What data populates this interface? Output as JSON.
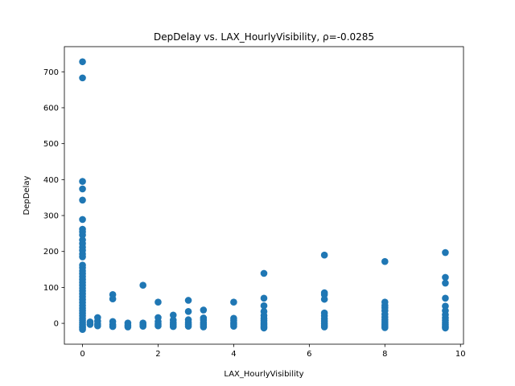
{
  "chart_data": {
    "type": "scatter",
    "title": "DepDelay vs. LAX_HourlyVisibility, ρ=-0.0285",
    "xlabel": "LAX_HourlyVisibility",
    "ylabel": "DepDelay",
    "xlim": [
      -0.48,
      10.08
    ],
    "ylim": [
      -58,
      770
    ],
    "xticks": [
      0,
      2,
      4,
      6,
      8,
      10
    ],
    "yticks": [
      0,
      100,
      200,
      300,
      400,
      500,
      600,
      700
    ],
    "grid": false,
    "legend": "none",
    "color": "#1f77b4",
    "points": [
      [
        0,
        728
      ],
      [
        0,
        683
      ],
      [
        0,
        395
      ],
      [
        0,
        374
      ],
      [
        0,
        343
      ],
      [
        0,
        289
      ],
      [
        0,
        262
      ],
      [
        0,
        255
      ],
      [
        0,
        246
      ],
      [
        0,
        232
      ],
      [
        0,
        222
      ],
      [
        0,
        212
      ],
      [
        0,
        203
      ],
      [
        0,
        193
      ],
      [
        0,
        185
      ],
      [
        0,
        162
      ],
      [
        0,
        155
      ],
      [
        0,
        146
      ],
      [
        0,
        138
      ],
      [
        0,
        130
      ],
      [
        0,
        122
      ],
      [
        0,
        114
      ],
      [
        0,
        106
      ],
      [
        0,
        98
      ],
      [
        0,
        90
      ],
      [
        0,
        82
      ],
      [
        0,
        74
      ],
      [
        0,
        66
      ],
      [
        0,
        58
      ],
      [
        0,
        50
      ],
      [
        0,
        42
      ],
      [
        0,
        35
      ],
      [
        0,
        28
      ],
      [
        0,
        21
      ],
      [
        0,
        14
      ],
      [
        0,
        8
      ],
      [
        0,
        2
      ],
      [
        0,
        -4
      ],
      [
        0,
        -9
      ],
      [
        0,
        -13
      ],
      [
        0,
        -17
      ],
      [
        0.2,
        4
      ],
      [
        0.2,
        -3
      ],
      [
        0.4,
        16
      ],
      [
        0.4,
        6
      ],
      [
        0.4,
        -2
      ],
      [
        0.4,
        -7
      ],
      [
        0.8,
        80
      ],
      [
        0.8,
        68
      ],
      [
        0.8,
        5
      ],
      [
        0.8,
        -4
      ],
      [
        0.8,
        -9
      ],
      [
        1.2,
        1
      ],
      [
        1.2,
        -5
      ],
      [
        1.2,
        -10
      ],
      [
        1.6,
        106
      ],
      [
        1.6,
        1
      ],
      [
        1.6,
        -4
      ],
      [
        1.6,
        -8
      ],
      [
        2,
        59
      ],
      [
        2,
        16
      ],
      [
        2,
        5
      ],
      [
        2,
        -2
      ],
      [
        2,
        -7
      ],
      [
        2.4,
        23
      ],
      [
        2.4,
        9
      ],
      [
        2.4,
        2
      ],
      [
        2.4,
        -4
      ],
      [
        2.4,
        -9
      ],
      [
        2.8,
        64
      ],
      [
        2.8,
        33
      ],
      [
        2.8,
        10
      ],
      [
        2.8,
        3
      ],
      [
        2.8,
        -3
      ],
      [
        2.8,
        -8
      ],
      [
        3.2,
        37
      ],
      [
        3.2,
        15
      ],
      [
        3.2,
        9
      ],
      [
        3.2,
        2
      ],
      [
        3.2,
        -4
      ],
      [
        3.2,
        -10
      ],
      [
        4,
        59
      ],
      [
        4,
        14
      ],
      [
        4,
        8
      ],
      [
        4,
        2
      ],
      [
        4,
        -3
      ],
      [
        4,
        -8
      ],
      [
        4.8,
        139
      ],
      [
        4.8,
        70
      ],
      [
        4.8,
        49
      ],
      [
        4.8,
        33
      ],
      [
        4.8,
        22
      ],
      [
        4.8,
        14
      ],
      [
        4.8,
        7
      ],
      [
        4.8,
        1
      ],
      [
        4.8,
        -4
      ],
      [
        4.8,
        -9
      ],
      [
        4.8,
        -13
      ],
      [
        6.4,
        190
      ],
      [
        6.4,
        85
      ],
      [
        6.4,
        80
      ],
      [
        6.4,
        67
      ],
      [
        6.4,
        29
      ],
      [
        6.4,
        21
      ],
      [
        6.4,
        13
      ],
      [
        6.4,
        6
      ],
      [
        6.4,
        0
      ],
      [
        6.4,
        -5
      ],
      [
        6.4,
        -10
      ],
      [
        8,
        172
      ],
      [
        8,
        59
      ],
      [
        8,
        50
      ],
      [
        8,
        43
      ],
      [
        8,
        35
      ],
      [
        8,
        25
      ],
      [
        8,
        17
      ],
      [
        8,
        10
      ],
      [
        8,
        4
      ],
      [
        8,
        -2
      ],
      [
        8,
        -7
      ],
      [
        8,
        -12
      ],
      [
        9.6,
        197
      ],
      [
        9.6,
        128
      ],
      [
        9.6,
        112
      ],
      [
        9.6,
        70
      ],
      [
        9.6,
        48
      ],
      [
        9.6,
        35
      ],
      [
        9.6,
        24
      ],
      [
        9.6,
        15
      ],
      [
        9.6,
        8
      ],
      [
        9.6,
        2
      ],
      [
        9.6,
        -4
      ],
      [
        9.6,
        -9
      ],
      [
        9.6,
        -13
      ]
    ]
  }
}
